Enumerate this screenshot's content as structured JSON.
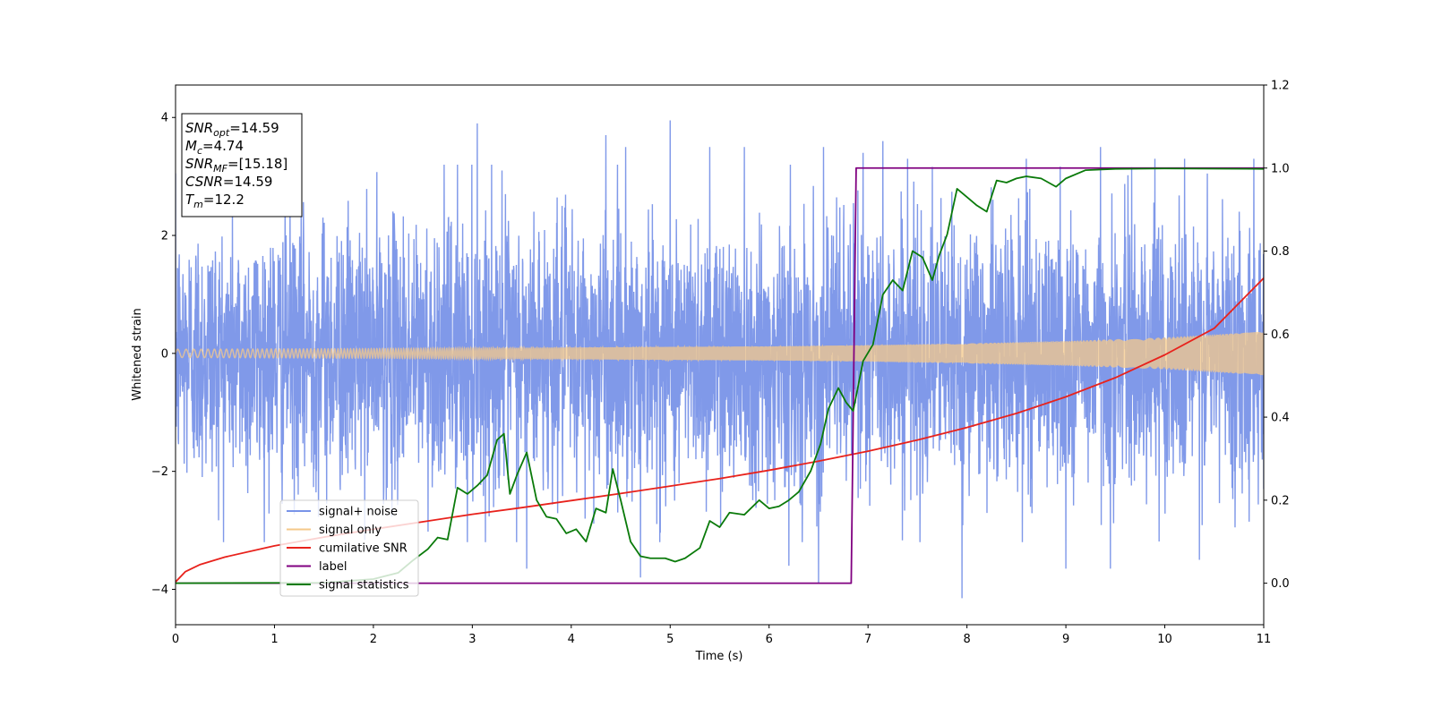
{
  "chart_data": {
    "type": "line",
    "title": "",
    "xlabel": "Time (s)",
    "ylabel": "Whitened strain",
    "xlim": [
      0,
      11
    ],
    "ylim": [
      -4.6,
      4.55
    ],
    "y2lim": [
      -0.1,
      1.2
    ],
    "xticks": [
      "0",
      "1",
      "2",
      "3",
      "4",
      "5",
      "6",
      "7",
      "8",
      "9",
      "10",
      "11"
    ],
    "yticks": [
      "−4",
      "−2",
      "0",
      "2",
      "4"
    ],
    "y2ticks": [
      "0.0",
      "0.2",
      "0.4",
      "0.6",
      "0.8",
      "1.0",
      "1.2"
    ],
    "grid": false,
    "legend_position": "lower-left",
    "annotation": {
      "lines": [
        {
          "sym": "SNR",
          "sub": "opt",
          "val": "=14.59"
        },
        {
          "sym": "M",
          "sub": "c",
          "val": "=4.74"
        },
        {
          "sym": "SNR",
          "sub": "MF",
          "val": "=[15.18]"
        },
        {
          "sym": "CSNR",
          "sub": "",
          "val": "=14.59"
        },
        {
          "sym": "T",
          "sub": "m",
          "val": "=12.2"
        }
      ]
    },
    "series": [
      {
        "name": "signal+ noise",
        "color": "#7994e8",
        "axis": "left",
        "description_values": "noisy whitened strain, roughly within ±2.5 with spikes to ±4",
        "x_range": [
          0,
          11
        ],
        "noise_std": 1.1,
        "peak_values": [
          {
            "x": 2.85,
            "y": 3.2
          },
          {
            "x": 2.95,
            "y": -3.2
          },
          {
            "x": 3.05,
            "y": 3.9
          },
          {
            "x": 3.3,
            "y": 3.1
          },
          {
            "x": 3.55,
            "y": -3.65
          },
          {
            "x": 4.35,
            "y": 3.7
          },
          {
            "x": 4.55,
            "y": 3.5
          },
          {
            "x": 4.7,
            "y": -3.8
          },
          {
            "x": 5.0,
            "y": 3.95
          },
          {
            "x": 5.4,
            "y": 3.5
          },
          {
            "x": 5.75,
            "y": 3.5
          },
          {
            "x": 6.2,
            "y": -3.6
          },
          {
            "x": 6.5,
            "y": -3.9
          },
          {
            "x": 6.55,
            "y": 3.5
          },
          {
            "x": 6.95,
            "y": 3.4
          },
          {
            "x": 7.15,
            "y": 3.6
          },
          {
            "x": 7.4,
            "y": 3.3
          },
          {
            "x": 7.95,
            "y": -4.15
          },
          {
            "x": 8.6,
            "y": 3.3
          },
          {
            "x": 9.0,
            "y": -3.65
          },
          {
            "x": 9.35,
            "y": 3.5
          },
          {
            "x": 9.45,
            "y": -3.65
          },
          {
            "x": 9.9,
            "y": 3.3
          },
          {
            "x": 10.2,
            "y": 3.3
          },
          {
            "x": 10.35,
            "y": -3.5
          },
          {
            "x": 10.9,
            "y": 3.3
          },
          {
            "x": 11.0,
            "y": -2.3
          }
        ]
      },
      {
        "name": "signal only",
        "color": "#f5c98a",
        "axis": "left",
        "description_values": "chirp oscillation whose envelope grows with time",
        "envelope": [
          {
            "x": 0,
            "y": 0.07
          },
          {
            "x": 2,
            "y": 0.08
          },
          {
            "x": 4,
            "y": 0.1
          },
          {
            "x": 6,
            "y": 0.12
          },
          {
            "x": 7,
            "y": 0.14
          },
          {
            "x": 8,
            "y": 0.17
          },
          {
            "x": 9,
            "y": 0.21
          },
          {
            "x": 10,
            "y": 0.27
          },
          {
            "x": 11,
            "y": 0.37
          }
        ]
      },
      {
        "name": "cumilative SNR",
        "color": "#e8221c",
        "axis": "right",
        "points": [
          {
            "x": 0.0,
            "y": 0.003
          },
          {
            "x": 0.1,
            "y": 0.028
          },
          {
            "x": 0.25,
            "y": 0.045
          },
          {
            "x": 0.5,
            "y": 0.063
          },
          {
            "x": 1.0,
            "y": 0.09
          },
          {
            "x": 1.5,
            "y": 0.111
          },
          {
            "x": 2.0,
            "y": 0.13
          },
          {
            "x": 2.5,
            "y": 0.148
          },
          {
            "x": 3.0,
            "y": 0.166
          },
          {
            "x": 3.5,
            "y": 0.182
          },
          {
            "x": 4.0,
            "y": 0.199
          },
          {
            "x": 4.5,
            "y": 0.216
          },
          {
            "x": 5.0,
            "y": 0.234
          },
          {
            "x": 5.5,
            "y": 0.252
          },
          {
            "x": 6.0,
            "y": 0.272
          },
          {
            "x": 6.5,
            "y": 0.294
          },
          {
            "x": 7.0,
            "y": 0.318
          },
          {
            "x": 7.5,
            "y": 0.345
          },
          {
            "x": 8.0,
            "y": 0.375
          },
          {
            "x": 8.5,
            "y": 0.409
          },
          {
            "x": 9.0,
            "y": 0.449
          },
          {
            "x": 9.5,
            "y": 0.495
          },
          {
            "x": 10.0,
            "y": 0.55
          },
          {
            "x": 10.5,
            "y": 0.614
          },
          {
            "x": 11.0,
            "y": 0.735
          }
        ]
      },
      {
        "name": "label",
        "color": "#800080",
        "axis": "right",
        "points": [
          {
            "x": 0.0,
            "y": 0.0
          },
          {
            "x": 6.83,
            "y": 0.0
          },
          {
            "x": 6.88,
            "y": 1.0
          },
          {
            "x": 11.0,
            "y": 1.0
          }
        ]
      },
      {
        "name": "signal statistics",
        "color": "#0a7a0a",
        "axis": "right",
        "points": [
          {
            "x": 0.0,
            "y": 0.0
          },
          {
            "x": 1.5,
            "y": 0.001
          },
          {
            "x": 2.0,
            "y": 0.01
          },
          {
            "x": 2.25,
            "y": 0.025
          },
          {
            "x": 2.4,
            "y": 0.055
          },
          {
            "x": 2.55,
            "y": 0.082
          },
          {
            "x": 2.65,
            "y": 0.11
          },
          {
            "x": 2.75,
            "y": 0.105
          },
          {
            "x": 2.85,
            "y": 0.23
          },
          {
            "x": 2.95,
            "y": 0.215
          },
          {
            "x": 3.05,
            "y": 0.235
          },
          {
            "x": 3.15,
            "y": 0.26
          },
          {
            "x": 3.25,
            "y": 0.345
          },
          {
            "x": 3.32,
            "y": 0.36
          },
          {
            "x": 3.38,
            "y": 0.215
          },
          {
            "x": 3.45,
            "y": 0.26
          },
          {
            "x": 3.55,
            "y": 0.315
          },
          {
            "x": 3.65,
            "y": 0.2
          },
          {
            "x": 3.75,
            "y": 0.16
          },
          {
            "x": 3.85,
            "y": 0.155
          },
          {
            "x": 3.95,
            "y": 0.12
          },
          {
            "x": 4.05,
            "y": 0.13
          },
          {
            "x": 4.15,
            "y": 0.1
          },
          {
            "x": 4.25,
            "y": 0.18
          },
          {
            "x": 4.35,
            "y": 0.17
          },
          {
            "x": 4.42,
            "y": 0.275
          },
          {
            "x": 4.5,
            "y": 0.2
          },
          {
            "x": 4.6,
            "y": 0.1
          },
          {
            "x": 4.7,
            "y": 0.065
          },
          {
            "x": 4.8,
            "y": 0.06
          },
          {
            "x": 4.95,
            "y": 0.06
          },
          {
            "x": 5.05,
            "y": 0.052
          },
          {
            "x": 5.15,
            "y": 0.06
          },
          {
            "x": 5.3,
            "y": 0.085
          },
          {
            "x": 5.4,
            "y": 0.15
          },
          {
            "x": 5.5,
            "y": 0.135
          },
          {
            "x": 5.6,
            "y": 0.17
          },
          {
            "x": 5.75,
            "y": 0.165
          },
          {
            "x": 5.9,
            "y": 0.2
          },
          {
            "x": 6.0,
            "y": 0.18
          },
          {
            "x": 6.1,
            "y": 0.185
          },
          {
            "x": 6.2,
            "y": 0.2
          },
          {
            "x": 6.3,
            "y": 0.22
          },
          {
            "x": 6.42,
            "y": 0.27
          },
          {
            "x": 6.52,
            "y": 0.335
          },
          {
            "x": 6.6,
            "y": 0.42
          },
          {
            "x": 6.7,
            "y": 0.47
          },
          {
            "x": 6.78,
            "y": 0.435
          },
          {
            "x": 6.85,
            "y": 0.415
          },
          {
            "x": 6.95,
            "y": 0.535
          },
          {
            "x": 7.05,
            "y": 0.575
          },
          {
            "x": 7.15,
            "y": 0.695
          },
          {
            "x": 7.25,
            "y": 0.73
          },
          {
            "x": 7.35,
            "y": 0.705
          },
          {
            "x": 7.45,
            "y": 0.8
          },
          {
            "x": 7.55,
            "y": 0.785
          },
          {
            "x": 7.65,
            "y": 0.73
          },
          {
            "x": 7.72,
            "y": 0.79
          },
          {
            "x": 7.8,
            "y": 0.84
          },
          {
            "x": 7.9,
            "y": 0.95
          },
          {
            "x": 8.0,
            "y": 0.93
          },
          {
            "x": 8.1,
            "y": 0.91
          },
          {
            "x": 8.2,
            "y": 0.895
          },
          {
            "x": 8.3,
            "y": 0.97
          },
          {
            "x": 8.4,
            "y": 0.965
          },
          {
            "x": 8.5,
            "y": 0.975
          },
          {
            "x": 8.6,
            "y": 0.98
          },
          {
            "x": 8.75,
            "y": 0.975
          },
          {
            "x": 8.9,
            "y": 0.955
          },
          {
            "x": 9.0,
            "y": 0.975
          },
          {
            "x": 9.2,
            "y": 0.995
          },
          {
            "x": 9.5,
            "y": 0.998
          },
          {
            "x": 10.0,
            "y": 0.999
          },
          {
            "x": 11.0,
            "y": 0.998
          }
        ]
      }
    ]
  }
}
